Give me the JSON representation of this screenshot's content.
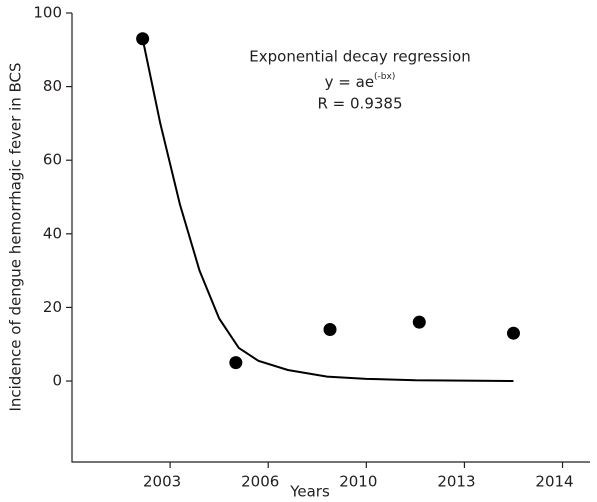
{
  "chart_data": {
    "type": "scatter",
    "x_label": "Years",
    "y_label": "Incidence of dengue hemorrhagic fever in BCS",
    "annotation_title": "Exponential decay regression",
    "equation": {
      "base": "y = ae",
      "exponent": "(-bx)"
    },
    "annotation_r": "R = 0.9385",
    "xlim": [
      0,
      5.28
    ],
    "xticks": [
      {
        "value": 1,
        "label": "2003"
      },
      {
        "value": 2,
        "label": "2006"
      },
      {
        "value": 3,
        "label": "2010"
      },
      {
        "value": 4,
        "label": "2013"
      },
      {
        "value": 5,
        "label": "2014"
      }
    ],
    "ylim": [
      -22,
      100
    ],
    "yticks": [
      0,
      20,
      40,
      60,
      80,
      100
    ],
    "grid": false,
    "series": [
      {
        "style": "points",
        "color": "#000000",
        "x": [
          0.72,
          1.67,
          2.63,
          3.54,
          4.5
        ],
        "values": [
          93,
          5,
          14,
          16,
          13
        ]
      },
      {
        "style": "line",
        "color": "#000000",
        "x": [
          0.72,
          0.9,
          1.1,
          1.3,
          1.5,
          1.7,
          1.9,
          2.2,
          2.6,
          3.0,
          3.5,
          4.0,
          4.5
        ],
        "values": [
          93,
          70,
          48,
          30,
          17,
          9,
          5.5,
          3,
          1.2,
          0.6,
          0.2,
          0.1,
          0
        ]
      }
    ]
  }
}
